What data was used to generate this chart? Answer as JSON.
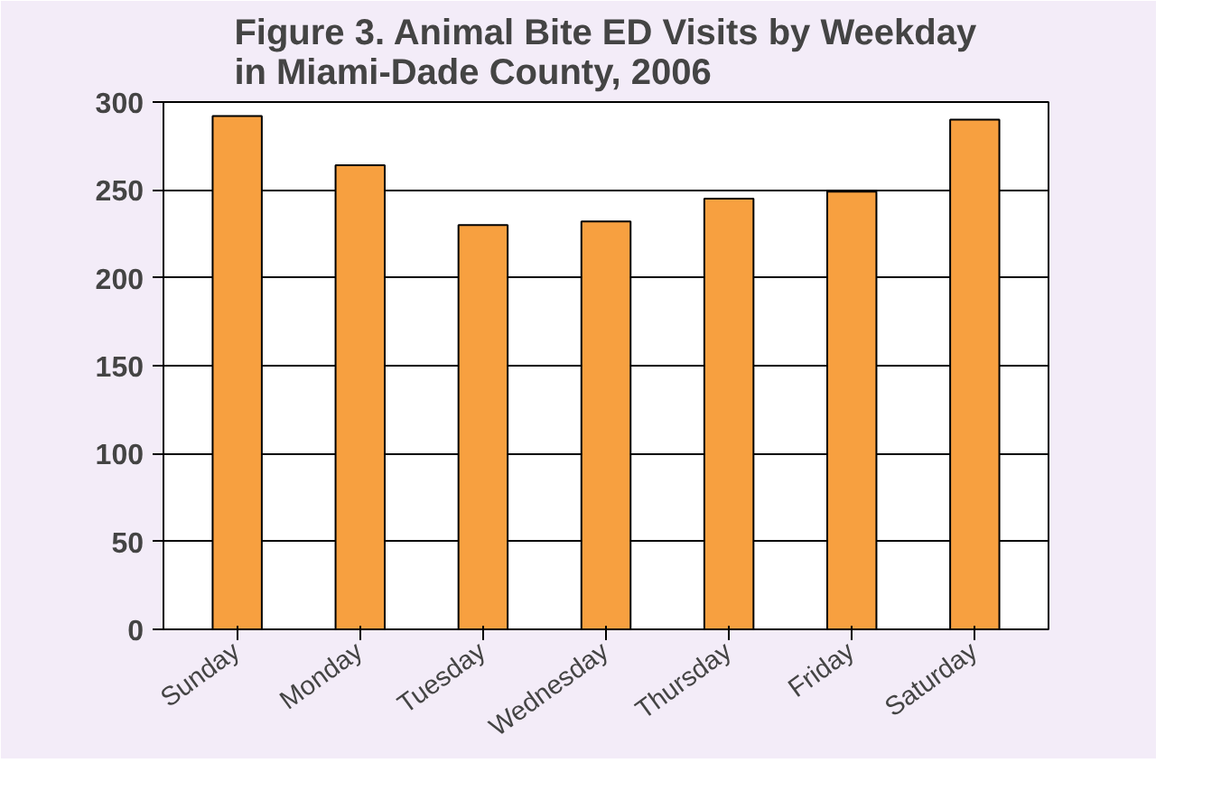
{
  "chart_data": {
    "type": "bar",
    "title": "Figure 3. Animal Bite ED Visits by Weekday\nin Miami-Dade County, 2006",
    "categories": [
      "Sunday",
      "Monday",
      "Tuesday",
      "Wednesday",
      "Thursday",
      "Friday",
      "Saturday"
    ],
    "values": [
      292,
      264,
      230,
      232,
      245,
      249,
      290
    ],
    "color": "#f7a040",
    "ylim": [
      0,
      300
    ],
    "yticks": [
      0,
      50,
      100,
      150,
      200,
      250,
      300
    ],
    "grid": "y"
  }
}
